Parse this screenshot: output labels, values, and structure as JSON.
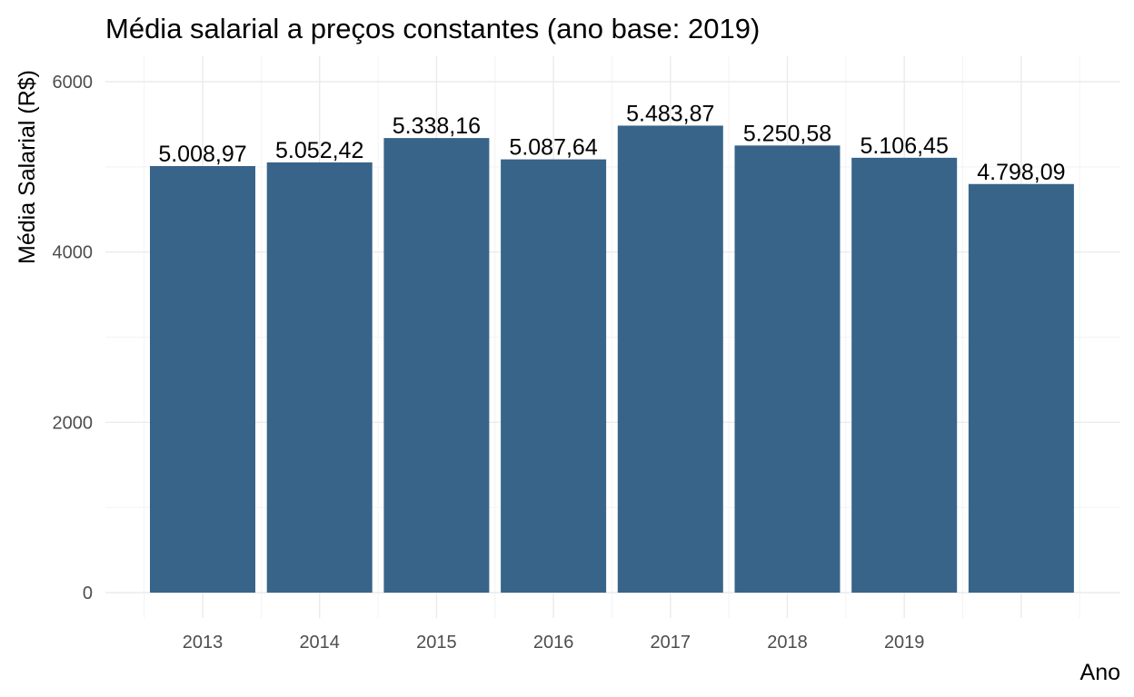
{
  "chart_data": {
    "type": "bar",
    "title": "Média salarial a preços constantes (ano base: 2019)",
    "xlabel": "Ano",
    "ylabel": "Média Salarial (R$)",
    "categories": [
      "2013",
      "2014",
      "2015",
      "2016",
      "2017",
      "2018",
      "2019",
      ""
    ],
    "values": [
      5008.97,
      5052.42,
      5338.16,
      5087.64,
      5483.87,
      5250.58,
      5106.45,
      4798.09
    ],
    "value_labels": [
      "5.008,97",
      "5.052,42",
      "5.338,16",
      "5.087,64",
      "5.483,87",
      "5.250,58",
      "5.106,45",
      "4.798,09"
    ],
    "y_ticks": [
      0,
      2000,
      4000,
      6000
    ],
    "ylim": [
      0,
      6300
    ],
    "grid": true,
    "legend": "none",
    "bar_color": "#38648a"
  }
}
